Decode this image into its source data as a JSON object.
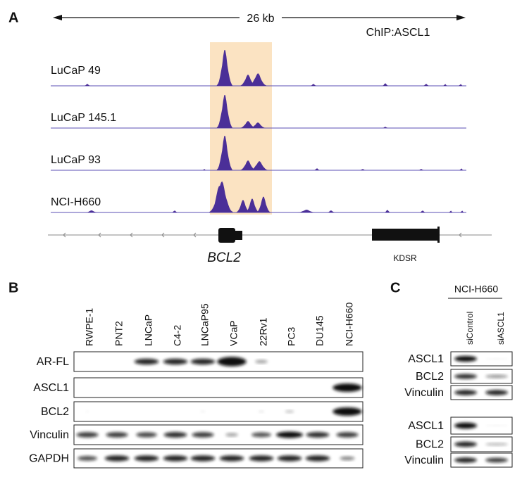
{
  "panel_a": {
    "label": "A",
    "scale": "26 kb",
    "chip": "ChIP:ASCL1",
    "tracks": [
      "LuCaP 49",
      "LuCaP 145.1",
      "LuCaP 93",
      "NCI-H660"
    ],
    "genes": [
      "BCL2",
      "KDSR"
    ]
  },
  "panel_b": {
    "label": "B",
    "lanes": [
      "RWPE-1",
      "PNT2",
      "LNCaP",
      "C4-2",
      "LNCaP95",
      "VCaP",
      "22Rv1",
      "PC3",
      "DU145",
      "NCI-H660"
    ],
    "blots": [
      "AR-FL",
      "ASCL1",
      "BCL2",
      "Vinculin",
      "GAPDH"
    ]
  },
  "panel_c": {
    "label": "C",
    "cell_line": "NCI-H660",
    "lanes": [
      "siControl",
      "siASCL1"
    ],
    "blots": [
      "ASCL1",
      "BCL2",
      "Vinculin",
      "ASCL1",
      "BCL2",
      "Vinculin"
    ]
  }
}
